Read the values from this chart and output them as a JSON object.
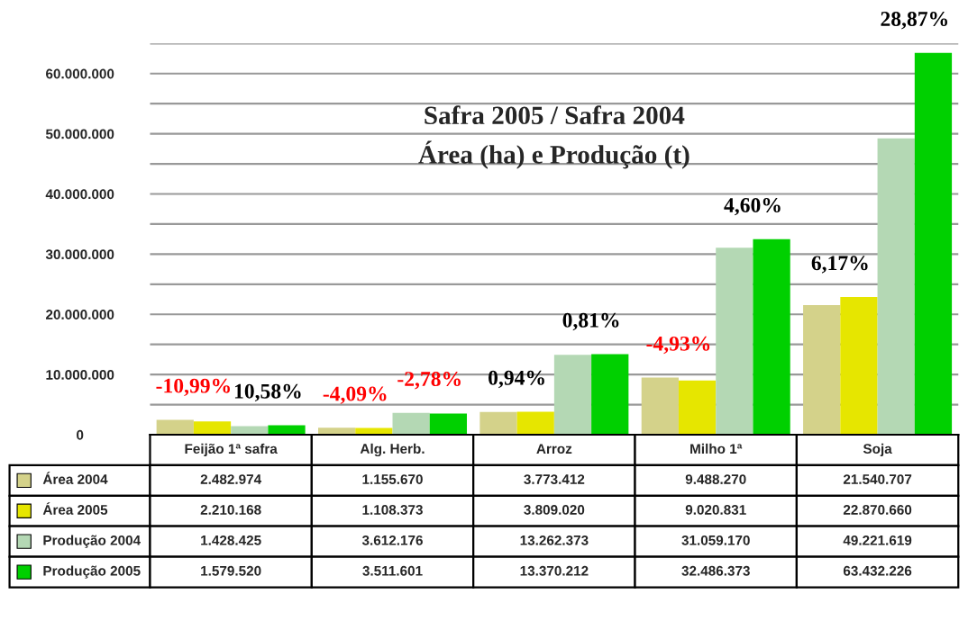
{
  "chart_data": {
    "type": "bar",
    "title": "Safra 2005 / Safra 2004\nÁrea (ha) e Produção (t)",
    "categories": [
      "Feijão 1ª safra",
      "Alg. Herb.",
      "Arroz",
      "Milho 1ª",
      "Soja"
    ],
    "series": [
      {
        "name": "Área 2004",
        "color": "#d4d28a",
        "values": [
          2482974,
          1155670,
          3773412,
          9488270,
          21540707
        ],
        "value_labels": [
          "2.482.974",
          "1.155.670",
          "3.773.412",
          "9.488.270",
          "21.540.707"
        ]
      },
      {
        "name": "Área 2005",
        "color": "#e6e600",
        "values": [
          2210168,
          1108373,
          3809020,
          9020831,
          22870660
        ],
        "value_labels": [
          "2.210.168",
          "1.108.373",
          "3.809.020",
          "9.020.831",
          "22.870.660"
        ]
      },
      {
        "name": "Produção 2004",
        "color": "#b4d8b4",
        "values": [
          1428425,
          3612176,
          13262373,
          31059170,
          49221619
        ],
        "value_labels": [
          "1.428.425",
          "3.612.176",
          "13.262.373",
          "31.059.170",
          "49.221.619"
        ]
      },
      {
        "name": "Produção 2005",
        "color": "#00d000",
        "values": [
          1579520,
          3511601,
          13370212,
          32486373,
          63432226
        ],
        "value_labels": [
          "1.579.520",
          "3.511.601",
          "13.370.212",
          "32.486.373",
          "63.432.226"
        ]
      }
    ],
    "ylim": [
      0,
      65000000
    ],
    "yticks": [
      {
        "value": 0,
        "label": "0"
      },
      {
        "value": 5000000,
        "label": null
      },
      {
        "value": 10000000,
        "label": "10.000.000"
      },
      {
        "value": 15000000,
        "label": null
      },
      {
        "value": 20000000,
        "label": "20.000.000"
      },
      {
        "value": 25000000,
        "label": null
      },
      {
        "value": 30000000,
        "label": "30.000.000"
      },
      {
        "value": 35000000,
        "label": null
      },
      {
        "value": 40000000,
        "label": "40.000.000"
      },
      {
        "value": 45000000,
        "label": null
      },
      {
        "value": 50000000,
        "label": "50.000.000"
      },
      {
        "value": 55000000,
        "label": null
      },
      {
        "value": 60000000,
        "label": "60.000.000"
      },
      {
        "value": 65000000,
        "label": null
      }
    ],
    "grid": "y",
    "legend": "bottom",
    "annotations": [
      "-10,99%",
      "10,58%",
      "-4,09%",
      "-2,78%",
      "0,94%",
      "0,81%",
      "-4,93%",
      "4,60%",
      "6,17%",
      "28,87%"
    ]
  }
}
